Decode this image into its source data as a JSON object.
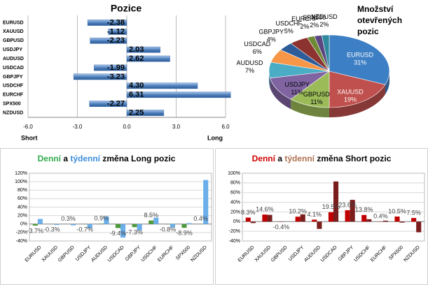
{
  "chart_data": [
    {
      "type": "hbar",
      "title": "Pozice",
      "categories": [
        "EURUSD",
        "XAUUSD",
        "GBPUSD",
        "USDJPY",
        "AUDUSD",
        "USDCAD",
        "GBPJPY",
        "USDCHF",
        "EURCHF",
        "SPX500",
        "NZDUSD"
      ],
      "values": [
        -2.38,
        -1.12,
        -2.23,
        2.03,
        2.62,
        -1.99,
        -3.23,
        4.3,
        6.31,
        -2.27,
        2.25
      ],
      "value_labels": [
        "-2.38",
        "-1.12",
        "-2.23",
        "2.03",
        "2.62",
        "-1.99",
        "-3.23",
        "4.30",
        "6.31",
        "-2.27",
        "2.25"
      ],
      "color": "#4f81bd",
      "xlim": [
        -6,
        6
      ],
      "xticks": [
        {
          "value": -6,
          "label": "-6.0"
        },
        {
          "value": -3,
          "label": "-3.0"
        },
        {
          "value": 0,
          "label": "0.0"
        },
        {
          "value": 3,
          "label": "3.0"
        },
        {
          "value": 6,
          "label": "6.0"
        }
      ],
      "axis_labels": [
        "Short",
        "Long"
      ],
      "grid": true
    },
    {
      "type": "pie",
      "title": [
        "Množství",
        "otevřených",
        "pozic"
      ],
      "categories": [
        "EURUSD",
        "XAUUSD",
        "GBPUSD",
        "USDJPY",
        "AUDUSD",
        "USDCAD",
        "GBPJPY",
        "USDCHF",
        "EURCHF",
        "SPX500",
        "NZDUSD"
      ],
      "values": [
        31,
        19,
        11,
        11,
        7,
        6,
        4,
        5,
        2,
        2,
        2
      ],
      "value_labels": [
        "31%",
        "19%",
        "11%",
        "11%",
        "7%",
        "6%",
        "4%",
        "5%",
        "2%",
        "2%",
        "2%"
      ],
      "colors": [
        "#3d7fc4",
        "#c0504d",
        "#9bbb59",
        "#8064a2",
        "#4bacc6",
        "#f79646",
        "#2c5d9a",
        "#8c3330",
        "#6f8a35",
        "#5c4680",
        "#2f8aa0"
      ]
    },
    {
      "type": "bar",
      "title": [
        {
          "text": "Denní",
          "color": "#2eaa4a"
        },
        {
          "text": "a",
          "color": "#000000"
        },
        {
          "text": "týdenní",
          "color": "#3a8ddc"
        },
        {
          "text": "změna Long pozic",
          "color": "#000000"
        }
      ],
      "categories": [
        "EURUSD",
        "XAUUSD",
        "GBPUSD",
        "USDJPY",
        "AUDUSD",
        "USDCAD",
        "GBPJPY",
        "USDCHF",
        "EURCHF",
        "SPX500",
        "NZDUSD"
      ],
      "series": [
        {
          "name": "Denní",
          "color": "#4e9a3a",
          "values": [
            -3.7,
            -0.3,
            0.3,
            -0.7,
            0.9,
            -9.4,
            -7.3,
            8.5,
            -0.8,
            -8.9,
            0.4
          ],
          "value_labels": [
            "-3.7%",
            "-0.3%",
            "0.3%",
            "-0.7%",
            "0.9%",
            "-9.4%",
            "-7.3%",
            "8.5%",
            "-0.8%",
            "-8.9%",
            "0.4%"
          ]
        },
        {
          "name": "týdenní",
          "color": "#6aaeea",
          "values": [
            12,
            -2,
            -3,
            -10,
            18,
            -32,
            -15,
            15,
            -8,
            2,
            104
          ]
        }
      ],
      "ylim": [
        -40,
        120
      ],
      "yticks": [
        {
          "value": -40,
          "label": "-40%"
        },
        {
          "value": -20,
          "label": "-20%"
        },
        {
          "value": 0,
          "label": "0%"
        },
        {
          "value": 20,
          "label": "20%"
        },
        {
          "value": 40,
          "label": "40%"
        },
        {
          "value": 60,
          "label": "60%"
        },
        {
          "value": 80,
          "label": "80%"
        },
        {
          "value": 100,
          "label": "100%"
        },
        {
          "value": 120,
          "label": "120%"
        }
      ],
      "grid": true
    },
    {
      "type": "bar",
      "title": [
        {
          "text": "Denní",
          "color": "#d00000"
        },
        {
          "text": "a",
          "color": "#000000"
        },
        {
          "text": "týdenní",
          "color": "#b07050"
        },
        {
          "text": "změna Short pozic",
          "color": "#000000"
        }
      ],
      "categories": [
        "EURUSD",
        "XAUUSD",
        "GBPUSD",
        "USDJPY",
        "AUDUSD",
        "USDCAD",
        "GBPJPY",
        "USDCHF",
        "EURCHF",
        "SPX500",
        "NZDUSD"
      ],
      "series": [
        {
          "name": "Denní",
          "color": "#c00000",
          "values": [
            8.3,
            14.6,
            -0.4,
            10.2,
            4.1,
            19.5,
            23.6,
            13.8,
            0.4,
            10.5,
            7.5
          ],
          "value_labels": [
            "8.3%",
            "14.6%",
            "-0.4%",
            "10.2%",
            "4.1%",
            "19.5%",
            "23.6%",
            "13.8%",
            "0.4%",
            "10.5%",
            "7.5%"
          ]
        },
        {
          "name": "týdenní",
          "color": "#7a1d1d",
          "values": [
            -3,
            14,
            0,
            15,
            -15,
            83,
            45,
            5,
            2,
            -2,
            -22
          ]
        }
      ],
      "ylim": [
        -40,
        100
      ],
      "yticks": [
        {
          "value": -40,
          "label": "-40%"
        },
        {
          "value": -20,
          "label": "-20%"
        },
        {
          "value": 0,
          "label": "0%"
        },
        {
          "value": 20,
          "label": "20%"
        },
        {
          "value": 40,
          "label": "40%"
        },
        {
          "value": 60,
          "label": "60%"
        },
        {
          "value": 80,
          "label": "80%"
        },
        {
          "value": 100,
          "label": "100%"
        }
      ],
      "grid": true
    }
  ]
}
